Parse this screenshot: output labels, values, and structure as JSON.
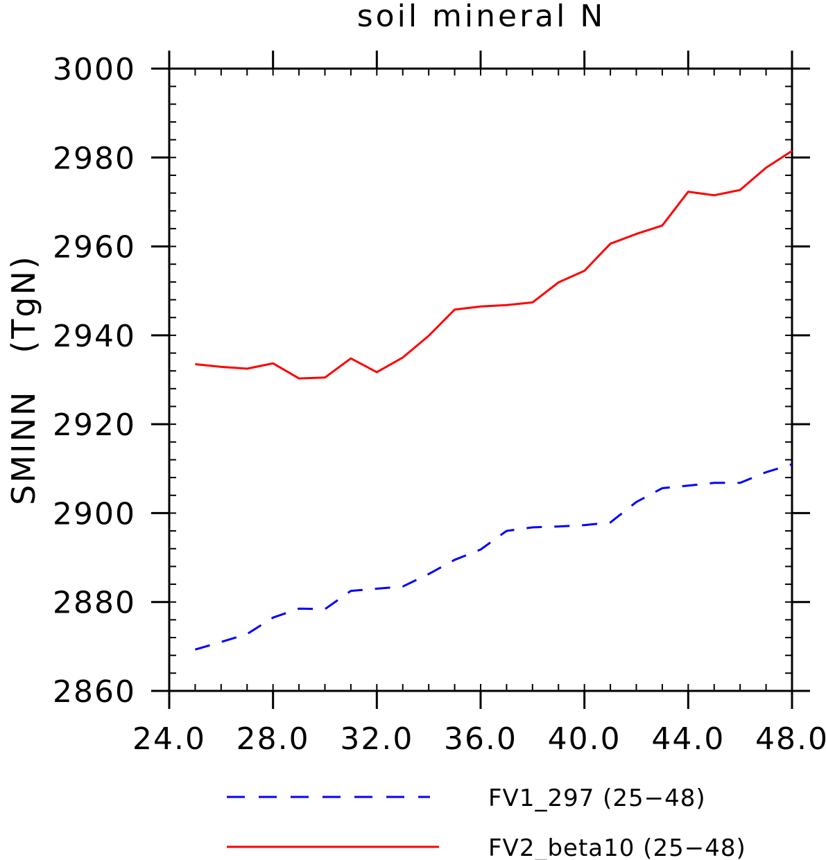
{
  "chart_data": {
    "type": "line",
    "title": "soil mineral N",
    "xlabel": "",
    "ylabel": "SMINN   (TgN)",
    "xlim": [
      24.0,
      48.0
    ],
    "ylim": [
      2860,
      3000
    ],
    "x_ticks": [
      24.0,
      28.0,
      32.0,
      36.0,
      40.0,
      44.0,
      48.0
    ],
    "x_tick_labels": [
      "24.0",
      "28.0",
      "32.0",
      "36.0",
      "40.0",
      "44.0",
      "48.0"
    ],
    "y_ticks": [
      2860,
      2880,
      2900,
      2920,
      2940,
      2960,
      2980,
      3000
    ],
    "y_tick_labels": [
      "2860",
      "2880",
      "2900",
      "2920",
      "2940",
      "2960",
      "2980",
      "3000"
    ],
    "grid": false,
    "legend_position": "bottom",
    "x": [
      25,
      26,
      27,
      28,
      29,
      30,
      31,
      32,
      33,
      34,
      35,
      36,
      37,
      38,
      39,
      40,
      41,
      42,
      43,
      44,
      45,
      46,
      47,
      48
    ],
    "series": [
      {
        "name": "FV1_297 (25−48)",
        "color": "#0000ff",
        "dash": "dashed",
        "values": [
          2869.3,
          2871.0,
          2872.8,
          2876.5,
          2878.5,
          2878.4,
          2882.5,
          2883.0,
          2883.5,
          2886.3,
          2889.5,
          2891.8,
          2896.0,
          2896.8,
          2897.0,
          2897.3,
          2897.9,
          2902.5,
          2905.6,
          2906.2,
          2906.8,
          2906.8,
          2909.2,
          2911.0
        ]
      },
      {
        "name": "FV2_beta10 (25−48)",
        "color": "#ff0000",
        "dash": "solid",
        "values": [
          2933.5,
          2932.9,
          2932.5,
          2933.7,
          2930.3,
          2930.5,
          2934.8,
          2931.7,
          2935.0,
          2939.9,
          2945.8,
          2946.5,
          2946.8,
          2947.4,
          2951.9,
          2954.5,
          2960.6,
          2962.8,
          2964.7,
          2972.3,
          2971.5,
          2972.7,
          2977.7,
          2981.5
        ]
      }
    ]
  }
}
